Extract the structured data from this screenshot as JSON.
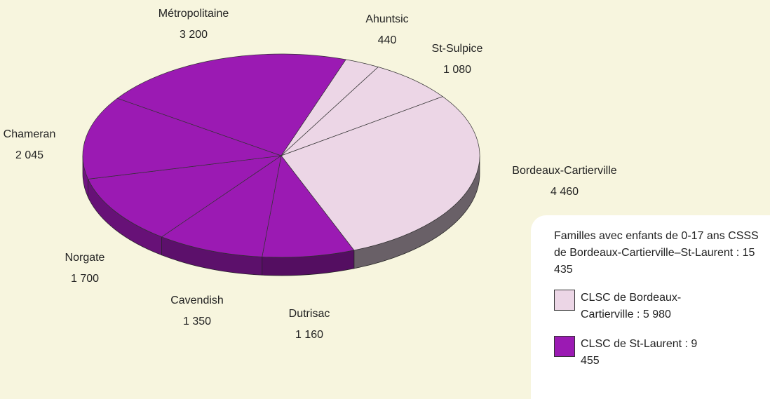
{
  "chart_data": {
    "type": "pie",
    "categories": [
      "Ahuntsic",
      "St-Sulpice",
      "Bordeaux-Cartierville",
      "Dutrisac",
      "Cavendish",
      "Norgate",
      "Chameran",
      "Métropolitaine"
    ],
    "values": [
      440,
      1080,
      4460,
      1160,
      1350,
      1700,
      2045,
      3200
    ],
    "value_labels": [
      "440",
      "1 080",
      "4 460",
      "1 160",
      "1 350",
      "1 700",
      "2 045",
      "3 200"
    ],
    "colors": [
      "#ecd6e6",
      "#ecd6e6",
      "#ecd6e6",
      "#9b1ab3",
      "#9b1ab3",
      "#9b1ab3",
      "#9b1ab3",
      "#9b1ab3"
    ],
    "legend": {
      "title": "Familles avec enfants de 0-17 ans CSSS de Bordeaux-Cartierville–St-Laurent : 15 435",
      "items": [
        {
          "label": "CLSC de Bordeaux-Cartierville : 5 980",
          "color": "#ecd6e6"
        },
        {
          "label": "CLSC de St-Laurent : 9 455",
          "color": "#9b1ab3"
        }
      ]
    }
  }
}
